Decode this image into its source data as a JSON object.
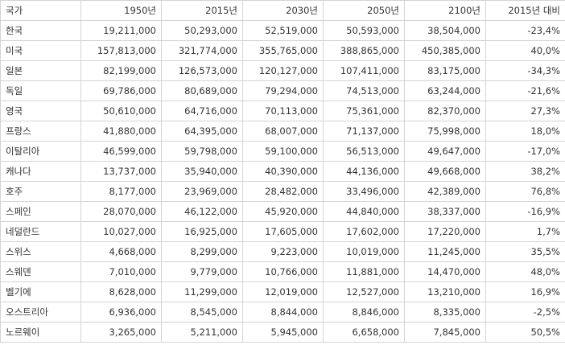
{
  "table": {
    "headers": [
      "국가",
      "1950년",
      "2015년",
      "2030년",
      "2050년",
      "2100년",
      "2015년 대비"
    ],
    "rows": [
      [
        "한국",
        "19,211,000",
        "50,293,000",
        "52,519,000",
        "50,593,000",
        "38,504,000",
        "-23,4%"
      ],
      [
        "미국",
        "157,813,000",
        "321,774,000",
        "355,765,000",
        "388,865,000",
        "450,385,000",
        "40,0%"
      ],
      [
        "일본",
        "82,199,000",
        "126,573,000",
        "120,127,000",
        "107,411,000",
        "83,175,000",
        "-34,3%"
      ],
      [
        "독일",
        "69,786,000",
        "80,689,000",
        "79,294,000",
        "74,513,000",
        "63,244,000",
        "-21,6%"
      ],
      [
        "영국",
        "50,610,000",
        "64,716,000",
        "70,113,000",
        "75,361,000",
        "82,370,000",
        "27,3%"
      ],
      [
        "프랑스",
        "41,880,000",
        "64,395,000",
        "68,007,000",
        "71,137,000",
        "75,998,000",
        "18,0%"
      ],
      [
        "이탈리아",
        "46,599,000",
        "59,798,000",
        "59,100,000",
        "56,513,000",
        "49,647,000",
        "-17,0%"
      ],
      [
        "캐나다",
        "13,737,000",
        "35,940,000",
        "40,390,000",
        "44,136,000",
        "49,668,000",
        "38,2%"
      ],
      [
        "호주",
        "8,177,000",
        "23,969,000",
        "28,482,000",
        "33,496,000",
        "42,389,000",
        "76,8%"
      ],
      [
        "스페인",
        "28,070,000",
        "46,122,000",
        "45,920,000",
        "44,840,000",
        "38,337,000",
        "-16,9%"
      ],
      [
        "네덜란드",
        "10,027,000",
        "16,925,000",
        "17,605,000",
        "17,602,000",
        "17,220,000",
        "1,7%"
      ],
      [
        "스위스",
        "4,668,000",
        "8,299,000",
        "9,223,000",
        "10,019,000",
        "11,245,000",
        "35,5%"
      ],
      [
        "스웨덴",
        "7,010,000",
        "9,779,000",
        "10,766,000",
        "11,881,000",
        "14,470,000",
        "48,0%"
      ],
      [
        "벨기에",
        "8,628,000",
        "11,299,000",
        "12,019,000",
        "12,527,000",
        "13,210,000",
        "16,9%"
      ],
      [
        "오스트리아",
        "6,936,000",
        "8,545,000",
        "8,844,000",
        "8,846,000",
        "8,335,000",
        "-2,5%"
      ],
      [
        "노르웨이",
        "3,265,000",
        "5,211,000",
        "5,945,000",
        "6,658,000",
        "7,845,000",
        "50,5%"
      ]
    ]
  }
}
